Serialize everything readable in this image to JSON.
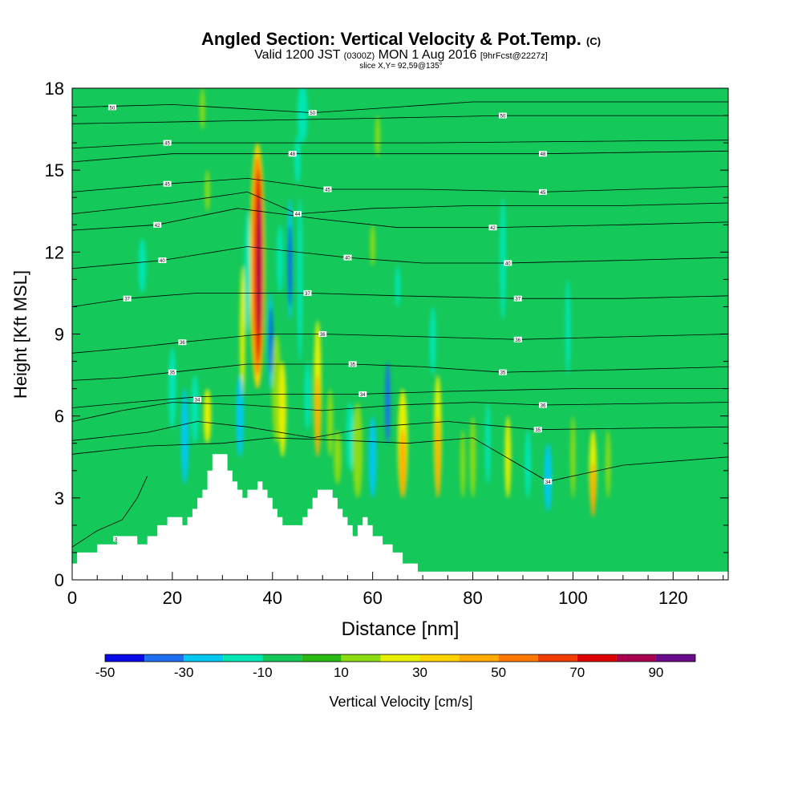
{
  "chart_data": {
    "type": "heatmap",
    "title": "Angled Section: Vertical Velocity & Pot.Temp.",
    "title_suffix": "(C)",
    "subtitle_parts": [
      "Valid 1200 JST",
      "(0300Z)",
      "MON 1 Aug 2016",
      "[9hrFcst@2227z]"
    ],
    "slice_label": "slice X,Y= 92,59@135°",
    "xlabel": "Distance [nm]",
    "ylabel": "Height [Kft MSL]",
    "xlim": [
      0,
      131
    ],
    "ylim": [
      0,
      18
    ],
    "xticks": [
      0,
      20,
      40,
      60,
      80,
      100,
      120
    ],
    "yticks": [
      0,
      3,
      6,
      9,
      12,
      15,
      18
    ],
    "colorbar": {
      "label": "Vertical Velocity [cm/s]",
      "ticks": [
        -50,
        -30,
        -10,
        10,
        30,
        50,
        70,
        90
      ],
      "bins": [
        -50,
        -40,
        -30,
        -20,
        -10,
        0,
        10,
        20,
        30,
        40,
        50,
        60,
        70,
        80,
        90,
        100
      ],
      "colors": [
        "#0a0ae6",
        "#1e6ef0",
        "#00c8f0",
        "#00e6b4",
        "#14c85a",
        "#2ab814",
        "#8cdc14",
        "#e6f000",
        "#ffd200",
        "#ffaa00",
        "#ff7800",
        "#f03c00",
        "#dc0000",
        "#aa0050",
        "#6a0a8c"
      ]
    },
    "background_color": "#14c85a",
    "terrain": [
      [
        0,
        0.6
      ],
      [
        1,
        1.0
      ],
      [
        5,
        1.3
      ],
      [
        9,
        1.6
      ],
      [
        13,
        1.3
      ],
      [
        15,
        1.6
      ],
      [
        17,
        2.0
      ],
      [
        19,
        2.3
      ],
      [
        21,
        2.3
      ],
      [
        22,
        2.0
      ],
      [
        23,
        2.3
      ],
      [
        24,
        2.6
      ],
      [
        25,
        3.0
      ],
      [
        26,
        3.3
      ],
      [
        27,
        4.0
      ],
      [
        28,
        4.6
      ],
      [
        30,
        4.6
      ],
      [
        31,
        4.0
      ],
      [
        32,
        3.6
      ],
      [
        33,
        3.3
      ],
      [
        34,
        3.0
      ],
      [
        35,
        3.3
      ],
      [
        37,
        3.6
      ],
      [
        38,
        3.3
      ],
      [
        39,
        3.0
      ],
      [
        40,
        2.6
      ],
      [
        41,
        2.3
      ],
      [
        42,
        2.0
      ],
      [
        45,
        2.0
      ],
      [
        46,
        2.3
      ],
      [
        47,
        2.6
      ],
      [
        48,
        3.0
      ],
      [
        49,
        3.3
      ],
      [
        51,
        3.3
      ],
      [
        52,
        3.0
      ],
      [
        53,
        2.6
      ],
      [
        54,
        2.3
      ],
      [
        55,
        2.0
      ],
      [
        56,
        1.6
      ],
      [
        57,
        2.0
      ],
      [
        58,
        2.3
      ],
      [
        59,
        2.0
      ],
      [
        60,
        1.6
      ],
      [
        62,
        1.3
      ],
      [
        64,
        1.0
      ],
      [
        66,
        0.6
      ],
      [
        69,
        0.3
      ],
      [
        131,
        0.3
      ]
    ],
    "cells": [
      {
        "x": 37.0,
        "y": 7.0,
        "w": 3.0,
        "h": 9.0,
        "v": 30
      },
      {
        "x": 37.0,
        "y": 7.5,
        "w": 2.2,
        "h": 8.0,
        "v": 55
      },
      {
        "x": 37.3,
        "y": 8.0,
        "w": 1.6,
        "h": 7.0,
        "v": 75
      },
      {
        "x": 37.5,
        "y": 9.0,
        "w": 1.0,
        "h": 5.0,
        "v": 85
      },
      {
        "x": 39.6,
        "y": 7.0,
        "w": 1.0,
        "h": 3.5,
        "v": -22
      },
      {
        "x": 39.7,
        "y": 7.5,
        "w": 0.6,
        "h": 2.5,
        "v": -42
      },
      {
        "x": 43.5,
        "y": 9.5,
        "w": 1.0,
        "h": 4.5,
        "v": -22
      },
      {
        "x": 43.5,
        "y": 10.0,
        "w": 0.6,
        "h": 3.0,
        "v": -42
      },
      {
        "x": 35.0,
        "y": 9.0,
        "w": 1.2,
        "h": 4.5,
        "v": -15
      },
      {
        "x": 34.0,
        "y": 6.5,
        "w": 1.0,
        "h": 5.0,
        "v": 20
      },
      {
        "x": 41.5,
        "y": 10.5,
        "w": 1.3,
        "h": 2.5,
        "v": -15
      },
      {
        "x": 45.5,
        "y": 8.0,
        "w": 1.0,
        "h": 6.0,
        "v": -15
      },
      {
        "x": 40.8,
        "y": 5.0,
        "w": 1.8,
        "h": 4.0,
        "v": 15
      },
      {
        "x": 42.0,
        "y": 4.5,
        "w": 1.5,
        "h": 3.5,
        "v": 25
      },
      {
        "x": 49.0,
        "y": 4.5,
        "w": 1.5,
        "h": 5.0,
        "v": 25
      },
      {
        "x": 49.0,
        "y": 4.5,
        "w": 1.0,
        "h": 3.0,
        "v": 45
      },
      {
        "x": 51.5,
        "y": 4.5,
        "w": 1.2,
        "h": 2.5,
        "v": 12
      },
      {
        "x": 55.5,
        "y": 4.0,
        "w": 1.5,
        "h": 2.5,
        "v": -15
      },
      {
        "x": 57.0,
        "y": 3.0,
        "w": 2.0,
        "h": 3.5,
        "v": 15
      },
      {
        "x": 60.0,
        "y": 3.0,
        "w": 1.5,
        "h": 3.0,
        "v": -22
      },
      {
        "x": 63.0,
        "y": 5.0,
        "w": 1.0,
        "h": 3.0,
        "v": -35
      },
      {
        "x": 66.0,
        "y": 3.0,
        "w": 2.0,
        "h": 4.0,
        "v": 25
      },
      {
        "x": 66.0,
        "y": 3.0,
        "w": 1.2,
        "h": 2.5,
        "v": 45
      },
      {
        "x": 73.0,
        "y": 3.0,
        "w": 1.5,
        "h": 4.5,
        "v": 25
      },
      {
        "x": 73.0,
        "y": 3.0,
        "w": 0.9,
        "h": 3.0,
        "v": 45
      },
      {
        "x": 72.0,
        "y": 7.5,
        "w": 1.2,
        "h": 2.5,
        "v": -15
      },
      {
        "x": 78.0,
        "y": 3.0,
        "w": 1.0,
        "h": 2.5,
        "v": 12
      },
      {
        "x": 80.0,
        "y": 3.0,
        "w": 1.2,
        "h": 3.0,
        "v": 15
      },
      {
        "x": 83.0,
        "y": 3.5,
        "w": 1.0,
        "h": 3.0,
        "v": -15
      },
      {
        "x": 87.0,
        "y": 3.0,
        "w": 1.2,
        "h": 3.0,
        "v": 25
      },
      {
        "x": 91.0,
        "y": 3.0,
        "w": 1.2,
        "h": 2.5,
        "v": -15
      },
      {
        "x": 95.0,
        "y": 2.5,
        "w": 1.5,
        "h": 2.5,
        "v": -22
      },
      {
        "x": 100.0,
        "y": 3.0,
        "w": 1.0,
        "h": 3.0,
        "v": 12
      },
      {
        "x": 104.0,
        "y": 2.5,
        "w": 1.5,
        "h": 3.0,
        "v": 25
      },
      {
        "x": 104.0,
        "y": 2.3,
        "w": 1.0,
        "h": 2.0,
        "v": 45
      },
      {
        "x": 107.0,
        "y": 3.0,
        "w": 1.0,
        "h": 2.5,
        "v": 12
      },
      {
        "x": 86.0,
        "y": 9.5,
        "w": 1.2,
        "h": 4.5,
        "v": -15
      },
      {
        "x": 99.0,
        "y": 7.5,
        "w": 1.0,
        "h": 3.5,
        "v": -15
      },
      {
        "x": 14.0,
        "y": 10.5,
        "w": 1.5,
        "h": 2.0,
        "v": -15
      },
      {
        "x": 20.0,
        "y": 5.5,
        "w": 1.5,
        "h": 3.0,
        "v": -15
      },
      {
        "x": 22.5,
        "y": 3.5,
        "w": 1.5,
        "h": 3.5,
        "v": -22
      },
      {
        "x": 24.5,
        "y": 5.0,
        "w": 1.5,
        "h": 2.5,
        "v": -15
      },
      {
        "x": 27.0,
        "y": 5.0,
        "w": 1.5,
        "h": 2.0,
        "v": 25
      },
      {
        "x": 33.5,
        "y": 4.5,
        "w": 1.5,
        "h": 3.0,
        "v": -22
      },
      {
        "x": 46.0,
        "y": 16.0,
        "w": 2.0,
        "h": 2.2,
        "v": -15
      },
      {
        "x": 45.0,
        "y": 14.5,
        "w": 1.2,
        "h": 1.8,
        "v": -15
      },
      {
        "x": 47.0,
        "y": 5.5,
        "w": 1.2,
        "h": 2.5,
        "v": -15
      },
      {
        "x": 53.0,
        "y": 3.5,
        "w": 1.5,
        "h": 2.0,
        "v": 15
      },
      {
        "x": 26.0,
        "y": 16.5,
        "w": 1.0,
        "h": 1.5,
        "v": 15
      },
      {
        "x": 27.0,
        "y": 13.5,
        "w": 1.0,
        "h": 1.5,
        "v": 15
      },
      {
        "x": 60.0,
        "y": 11.5,
        "w": 1.0,
        "h": 1.5,
        "v": 15
      },
      {
        "x": 61.0,
        "y": 15.5,
        "w": 1.0,
        "h": 1.5,
        "v": 15
      },
      {
        "x": 65.0,
        "y": 10.0,
        "w": 1.0,
        "h": 1.5,
        "v": -15
      }
    ],
    "isentropes": [
      {
        "value": "34",
        "labels": [
          [
            9,
            1.5
          ]
        ],
        "pts": [
          [
            0,
            1.2
          ],
          [
            5,
            1.8
          ],
          [
            10,
            2.2
          ],
          [
            13,
            3.0
          ],
          [
            15,
            3.8
          ]
        ]
      },
      {
        "value": "34",
        "labels": [
          [
            95,
            3.6
          ]
        ],
        "pts": [
          [
            0,
            4.6
          ],
          [
            15,
            4.9
          ],
          [
            30,
            5.0
          ],
          [
            40,
            5.2
          ],
          [
            55,
            5.1
          ],
          [
            67,
            5.0
          ],
          [
            80,
            5.2
          ],
          [
            95,
            3.6
          ],
          [
            110,
            4.2
          ],
          [
            131,
            4.5
          ]
        ]
      },
      {
        "value": "35",
        "labels": [
          [
            93,
            5.5
          ]
        ],
        "pts": [
          [
            0,
            5.1
          ],
          [
            15,
            5.4
          ],
          [
            25,
            5.8
          ],
          [
            35,
            5.6
          ],
          [
            48,
            5.2
          ],
          [
            60,
            5.6
          ],
          [
            75,
            5.8
          ],
          [
            93,
            5.5
          ],
          [
            131,
            5.6
          ]
        ]
      },
      {
        "value": "36",
        "labels": [
          [
            94,
            6.4
          ]
        ],
        "pts": [
          [
            0,
            5.8
          ],
          [
            10,
            6.2
          ],
          [
            20,
            6.5
          ],
          [
            35,
            6.4
          ],
          [
            50,
            6.2
          ],
          [
            65,
            6.4
          ],
          [
            80,
            6.5
          ],
          [
            94,
            6.4
          ],
          [
            131,
            6.5
          ]
        ]
      },
      {
        "value": "34",
        "labels": [
          [
            25,
            6.6
          ],
          [
            58,
            6.8
          ]
        ],
        "pts": [
          [
            0,
            6.3
          ],
          [
            12,
            6.5
          ],
          [
            25,
            6.7
          ],
          [
            40,
            6.8
          ],
          [
            58,
            6.8
          ],
          [
            75,
            6.9
          ],
          [
            100,
            7.0
          ],
          [
            131,
            7.0
          ]
        ]
      },
      {
        "value": "35",
        "labels": [
          [
            20,
            7.6
          ],
          [
            56,
            7.9
          ],
          [
            86,
            7.6
          ]
        ],
        "pts": [
          [
            0,
            7.3
          ],
          [
            10,
            7.4
          ],
          [
            20,
            7.6
          ],
          [
            35,
            7.9
          ],
          [
            56,
            7.9
          ],
          [
            70,
            7.8
          ],
          [
            86,
            7.6
          ],
          [
            110,
            7.7
          ],
          [
            131,
            7.8
          ]
        ]
      },
      {
        "value": "36",
        "labels": [
          [
            22,
            8.7
          ],
          [
            50,
            9.0
          ],
          [
            89,
            8.8
          ]
        ],
        "pts": [
          [
            0,
            8.3
          ],
          [
            12,
            8.5
          ],
          [
            22,
            8.7
          ],
          [
            38,
            9.0
          ],
          [
            50,
            9.0
          ],
          [
            70,
            8.9
          ],
          [
            89,
            8.8
          ],
          [
            110,
            8.9
          ],
          [
            131,
            9.0
          ]
        ]
      },
      {
        "value": "37",
        "labels": [
          [
            11,
            10.3
          ],
          [
            47,
            10.5
          ],
          [
            89,
            10.3
          ]
        ],
        "pts": [
          [
            0,
            10.0
          ],
          [
            11,
            10.3
          ],
          [
            25,
            10.5
          ],
          [
            40,
            10.5
          ],
          [
            47,
            10.5
          ],
          [
            65,
            10.4
          ],
          [
            89,
            10.3
          ],
          [
            110,
            10.3
          ],
          [
            131,
            10.4
          ]
        ]
      },
      {
        "value": "40",
        "labels": [
          [
            18,
            11.7
          ],
          [
            55,
            11.8
          ],
          [
            87,
            11.6
          ]
        ],
        "pts": [
          [
            0,
            11.4
          ],
          [
            18,
            11.7
          ],
          [
            35,
            12.2
          ],
          [
            55,
            11.8
          ],
          [
            70,
            11.6
          ],
          [
            87,
            11.6
          ],
          [
            110,
            11.7
          ],
          [
            131,
            11.8
          ]
        ]
      },
      {
        "value": "42",
        "labels": [
          [
            17,
            13.0
          ],
          [
            84,
            12.9
          ]
        ],
        "pts": [
          [
            0,
            12.8
          ],
          [
            17,
            13.0
          ],
          [
            33,
            13.6
          ],
          [
            50,
            13.2
          ],
          [
            65,
            12.9
          ],
          [
            84,
            12.9
          ],
          [
            110,
            13.0
          ],
          [
            131,
            13.1
          ]
        ]
      },
      {
        "value": "44",
        "labels": [
          [
            45,
            13.4
          ]
        ],
        "pts": [
          [
            0,
            13.4
          ],
          [
            20,
            13.8
          ],
          [
            35,
            14.2
          ],
          [
            45,
            13.4
          ],
          [
            60,
            13.6
          ],
          [
            80,
            13.7
          ],
          [
            110,
            13.7
          ],
          [
            131,
            13.8
          ]
        ]
      },
      {
        "value": "45",
        "labels": [
          [
            19,
            14.5
          ],
          [
            51,
            14.3
          ],
          [
            94,
            14.2
          ]
        ],
        "pts": [
          [
            0,
            14.2
          ],
          [
            19,
            14.5
          ],
          [
            35,
            14.7
          ],
          [
            51,
            14.3
          ],
          [
            70,
            14.3
          ],
          [
            94,
            14.2
          ],
          [
            131,
            14.4
          ]
        ]
      },
      {
        "value": "48",
        "labels": [
          [
            44,
            15.6
          ],
          [
            94,
            15.6
          ]
        ],
        "pts": [
          [
            0,
            15.3
          ],
          [
            20,
            15.6
          ],
          [
            44,
            15.6
          ],
          [
            70,
            15.6
          ],
          [
            94,
            15.6
          ],
          [
            131,
            15.7
          ]
        ]
      },
      {
        "value": "45",
        "labels": [
          [
            19,
            16.0
          ]
        ],
        "pts": [
          [
            0,
            15.8
          ],
          [
            19,
            16.0
          ],
          [
            40,
            16.0
          ],
          [
            70,
            16.0
          ],
          [
            131,
            16.1
          ]
        ]
      },
      {
        "value": "50",
        "labels": [
          [
            86,
            17.0
          ]
        ],
        "pts": [
          [
            0,
            16.7
          ],
          [
            30,
            16.8
          ],
          [
            60,
            16.9
          ],
          [
            86,
            17.0
          ],
          [
            131,
            17.0
          ]
        ]
      },
      {
        "value": "50",
        "labels": [
          [
            8,
            17.3
          ],
          [
            48,
            17.1
          ]
        ],
        "pts": [
          [
            0,
            17.3
          ],
          [
            20,
            17.4
          ],
          [
            48,
            17.1
          ],
          [
            80,
            17.5
          ],
          [
            131,
            17.5
          ]
        ]
      }
    ]
  }
}
